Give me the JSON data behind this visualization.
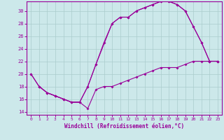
{
  "xlabel": "Windchill (Refroidissement éolien,°C)",
  "bg_color": "#cce8ea",
  "grid_color": "#aacccc",
  "line_color": "#990099",
  "xlim": [
    -0.5,
    23.5
  ],
  "ylim": [
    13.5,
    31.5
  ],
  "yticks": [
    14,
    16,
    18,
    20,
    22,
    24,
    26,
    28,
    30
  ],
  "xticks": [
    0,
    1,
    2,
    3,
    4,
    5,
    6,
    7,
    8,
    9,
    10,
    11,
    12,
    13,
    14,
    15,
    16,
    17,
    18,
    19,
    20,
    21,
    22,
    23
  ],
  "line1_x": [
    0,
    1,
    2,
    3,
    4,
    5,
    6,
    7,
    8,
    9,
    10,
    11,
    12,
    13,
    14,
    15,
    16,
    17,
    18,
    19,
    20,
    21,
    22,
    23
  ],
  "line1_y": [
    20,
    18,
    17,
    16.5,
    16,
    15.5,
    15.5,
    14.5,
    17.5,
    18,
    18,
    18.5,
    19,
    19.5,
    20,
    20.5,
    21,
    21,
    21,
    21.5,
    22,
    22,
    22,
    22
  ],
  "line2_x": [
    0,
    1,
    2,
    3,
    4,
    5,
    6,
    7,
    8,
    10,
    11,
    12,
    13,
    14,
    15,
    16,
    17,
    18,
    19,
    20,
    21,
    22,
    23
  ],
  "line2_y": [
    20,
    18,
    17,
    16.5,
    16,
    15.5,
    15.5,
    18,
    21.5,
    28,
    29,
    29,
    30,
    30.5,
    31,
    31.5,
    31.5,
    31,
    30,
    27.5,
    25,
    22,
    22
  ],
  "line3_x": [
    1,
    2,
    3,
    4,
    5,
    6,
    7,
    8,
    9,
    10,
    11,
    12,
    13,
    14,
    15,
    16,
    17,
    18,
    19,
    20,
    21,
    22,
    23
  ],
  "line3_y": [
    18,
    17,
    16.5,
    16,
    15.5,
    15.5,
    18,
    21.5,
    25,
    28,
    29,
    29,
    30,
    30.5,
    31,
    31.5,
    31.5,
    31,
    30,
    27.5,
    25,
    22,
    22
  ]
}
